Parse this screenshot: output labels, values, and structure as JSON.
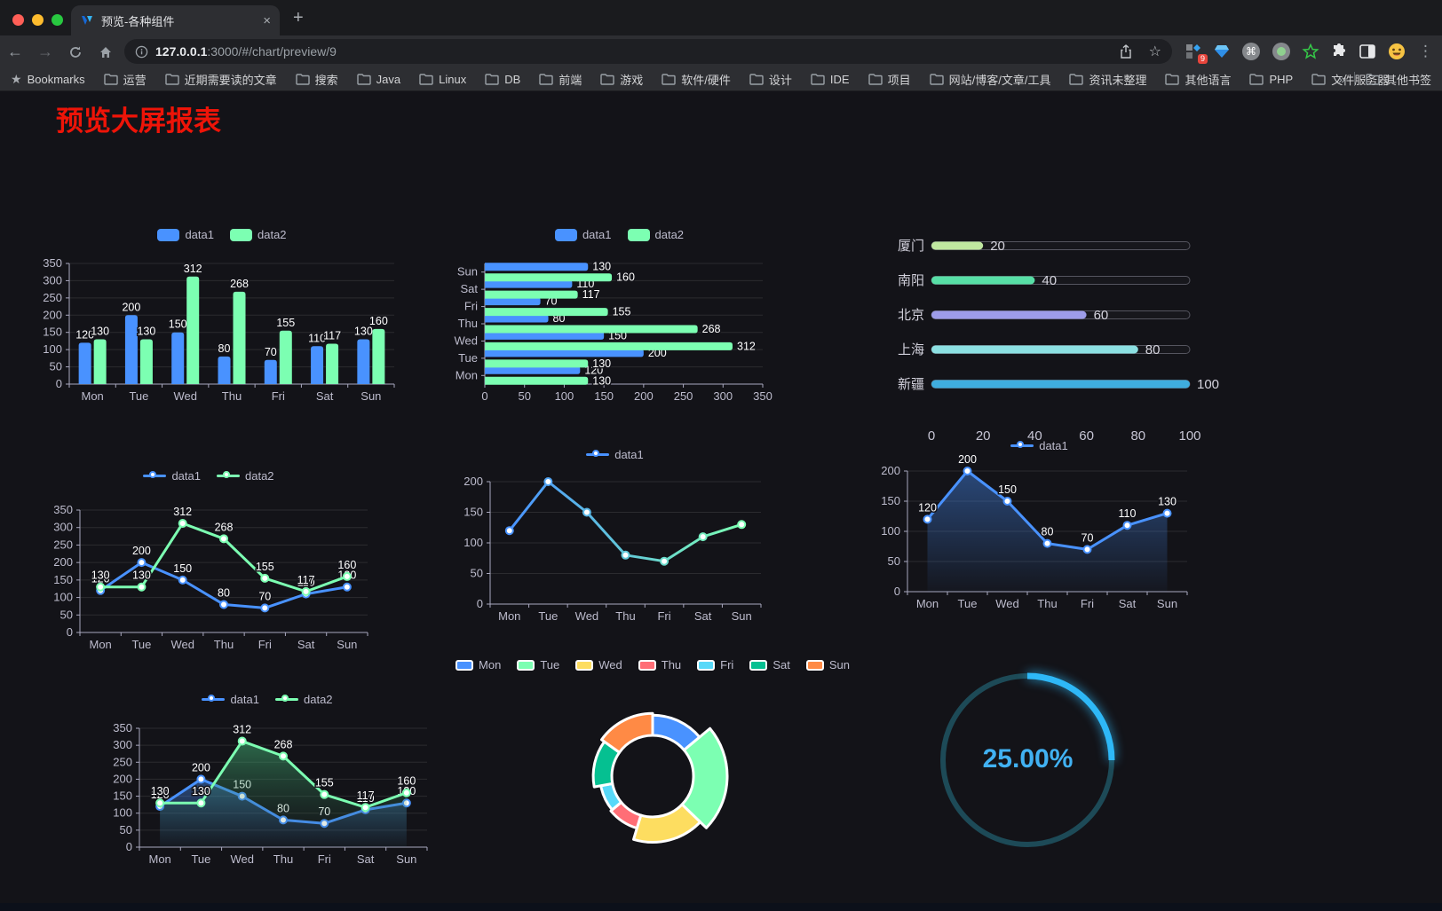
{
  "browser": {
    "tab_title": "预览-各种组件",
    "url_host": "127.0.0.1",
    "url_rest": ":3000/#/chart/preview/9",
    "bookmarks_label": "Bookmarks",
    "bookmarks": [
      "运营",
      "近期需要读的文章",
      "搜索",
      "Java",
      "Linux",
      "DB",
      "前端",
      "游戏",
      "软件/硬件",
      "设计",
      "IDE",
      "项目",
      "网站/博客/文章/工具",
      "资讯未整理",
      "其他语言",
      "PHP",
      "文件服务器"
    ],
    "overflow_chevron": "»",
    "other_bookmarks": "其他书签",
    "extension_badge": "9"
  },
  "page": {
    "title": "预览大屏报表"
  },
  "chart_data": [
    {
      "id": "bar-grouped",
      "type": "bar",
      "categories": [
        "Mon",
        "Tue",
        "Wed",
        "Thu",
        "Fri",
        "Sat",
        "Sun"
      ],
      "series": [
        {
          "name": "data1",
          "color": "#4992ff",
          "values": [
            120,
            200,
            150,
            80,
            70,
            110,
            130
          ]
        },
        {
          "name": "data2",
          "color": "#7cffb2",
          "values": [
            130,
            130,
            312,
            268,
            155,
            117,
            160
          ]
        }
      ],
      "ylim": [
        0,
        350
      ],
      "ytick_step": 50,
      "legend": true,
      "value_labels": true
    },
    {
      "id": "bar-horizontal",
      "type": "hbar",
      "categories": [
        "Sun",
        "Sat",
        "Fri",
        "Thu",
        "Wed",
        "Tue",
        "Mon"
      ],
      "series": [
        {
          "name": "data1",
          "color": "#4992ff",
          "values": [
            130,
            110,
            70,
            80,
            150,
            200,
            120
          ]
        },
        {
          "name": "data2",
          "color": "#7cffb2",
          "values": [
            160,
            117,
            155,
            268,
            312,
            130,
            130
          ]
        }
      ],
      "xlim": [
        0,
        350
      ],
      "xtick_step": 50,
      "legend": true,
      "value_labels": true
    },
    {
      "id": "progress",
      "type": "progress-bars",
      "max": 100,
      "items": [
        {
          "label": "厦门",
          "value": 20,
          "color": "#bfe7a0"
        },
        {
          "label": "南阳",
          "value": 40,
          "color": "#57dfa6"
        },
        {
          "label": "北京",
          "value": 60,
          "color": "#9d9ce9"
        },
        {
          "label": "上海",
          "value": 80,
          "color": "#8ce0e2"
        },
        {
          "label": "新疆",
          "value": 100,
          "color": "#3fadde"
        }
      ],
      "xticks": [
        0,
        20,
        40,
        60,
        80,
        100
      ]
    },
    {
      "id": "line-two",
      "type": "line",
      "categories": [
        "Mon",
        "Tue",
        "Wed",
        "Thu",
        "Fri",
        "Sat",
        "Sun"
      ],
      "series": [
        {
          "name": "data1",
          "color": "#4992ff",
          "values": [
            120,
            200,
            150,
            80,
            70,
            110,
            130
          ]
        },
        {
          "name": "data2",
          "color": "#7cffb2",
          "values": [
            130,
            130,
            312,
            268,
            155,
            117,
            160
          ]
        }
      ],
      "ylim": [
        0,
        350
      ],
      "ytick_step": 50,
      "legend": true,
      "value_labels": true
    },
    {
      "id": "line-gradient",
      "type": "line",
      "categories": [
        "Mon",
        "Tue",
        "Wed",
        "Thu",
        "Fri",
        "Sat",
        "Sun"
      ],
      "series": [
        {
          "name": "data1",
          "color": "#4992ff",
          "color_end": "#7cffb2",
          "gradient": true,
          "values": [
            120,
            200,
            150,
            80,
            70,
            110,
            130
          ]
        }
      ],
      "ylim": [
        0,
        200
      ],
      "ytick_step": 50,
      "legend": true,
      "value_labels": false
    },
    {
      "id": "area-single",
      "type": "line",
      "categories": [
        "Mon",
        "Tue",
        "Wed",
        "Thu",
        "Fri",
        "Sat",
        "Sun"
      ],
      "series": [
        {
          "name": "data1",
          "color": "#4992ff",
          "area": true,
          "values": [
            120,
            200,
            150,
            80,
            70,
            110,
            130
          ]
        }
      ],
      "ylim": [
        0,
        200
      ],
      "ytick_step": 50,
      "legend": true,
      "value_labels": true
    },
    {
      "id": "area-two",
      "type": "line",
      "categories": [
        "Mon",
        "Tue",
        "Wed",
        "Thu",
        "Fri",
        "Sat",
        "Sun"
      ],
      "series": [
        {
          "name": "data1",
          "color": "#4992ff",
          "area": true,
          "values": [
            120,
            200,
            150,
            80,
            70,
            110,
            130
          ]
        },
        {
          "name": "data2",
          "color": "#7cffb2",
          "area": true,
          "values": [
            130,
            130,
            312,
            268,
            155,
            117,
            160
          ]
        }
      ],
      "ylim": [
        0,
        350
      ],
      "ytick_step": 50,
      "legend": true,
      "value_labels": true
    },
    {
      "id": "pie-rose",
      "type": "pie",
      "rose": true,
      "inner_radius": 46,
      "outer_radius": 84,
      "border_color": "#ffffff",
      "items": [
        {
          "label": "Mon",
          "value": 120,
          "color": "#4992ff"
        },
        {
          "label": "Tue",
          "value": 200,
          "color": "#7cffb2"
        },
        {
          "label": "Wed",
          "value": 150,
          "color": "#fddd60"
        },
        {
          "label": "Thu",
          "value": 80,
          "color": "#ff6e76"
        },
        {
          "label": "Fri",
          "value": 70,
          "color": "#58d9f9"
        },
        {
          "label": "Sat",
          "value": 110,
          "color": "#05c091"
        },
        {
          "label": "Sun",
          "value": 130,
          "color": "#ff8a45"
        }
      ],
      "legend": true
    },
    {
      "id": "gauge",
      "type": "gauge",
      "value": 25,
      "label": "25.00%",
      "color": "#2eb8f7",
      "track_color": "#1d4a57"
    }
  ]
}
